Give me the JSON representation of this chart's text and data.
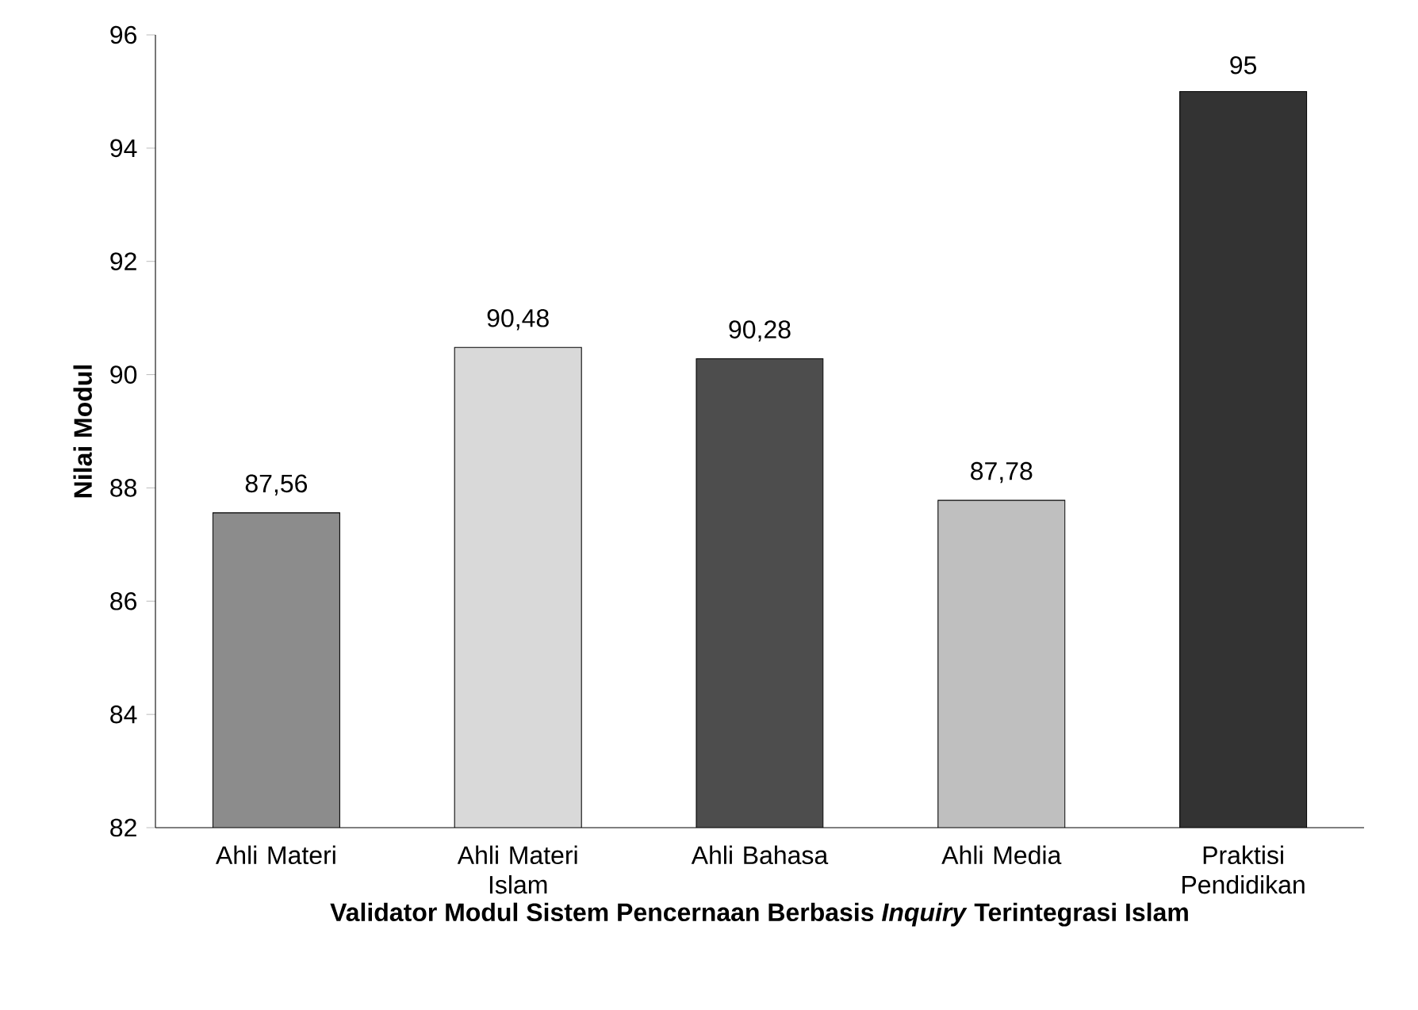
{
  "chart_data": {
    "type": "bar",
    "xlabel": "**Validator Modul Sistem Pencernaan Berbasis *Inquiry* Terintegrasi Islam**",
    "ylabel": "**Nilai Modul**",
    "categories": [
      "Ahli Materi",
      "Ahli Materi Islam",
      "Ahli Bahasa",
      "Ahli Media",
      "Praktisi Pendidikan"
    ],
    "values": [
      87.56,
      90.48,
      90.28,
      87.78,
      95
    ],
    "value_labels": [
      "87,56",
      "90,48",
      "90,28",
      "87,78",
      "95"
    ],
    "colors": [
      "#8c8c8c",
      "#d9d9d9",
      "#4d4d4d",
      "#bfbfbf",
      "#333333"
    ],
    "ylim": [
      82,
      96
    ],
    "yticks": [
      82,
      84,
      86,
      88,
      90,
      92,
      94,
      96
    ],
    "grid": false
  }
}
